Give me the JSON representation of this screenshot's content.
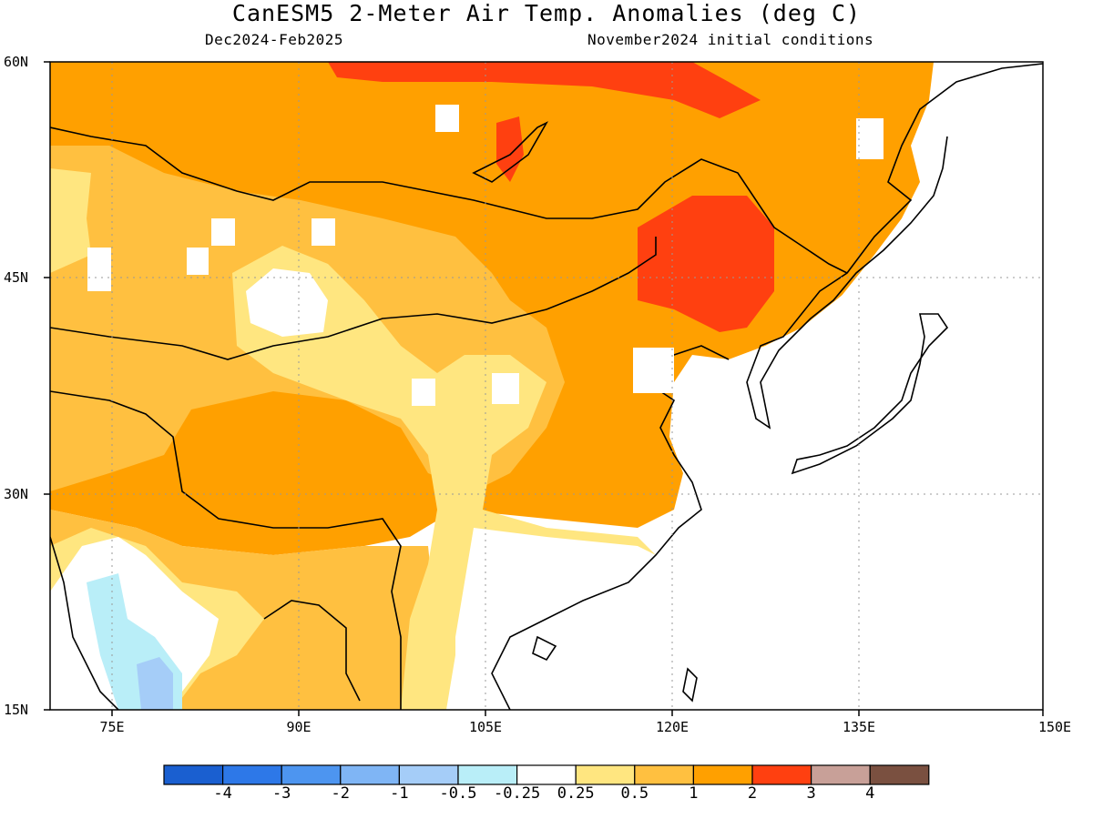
{
  "header": {
    "title": "CanESM5 2-Meter Air Temp. Anomalies (deg C)",
    "period": "Dec2024-Feb2025",
    "initial_conditions": "November2024 initial conditions"
  },
  "map": {
    "lat_labels": [
      "60N",
      "45N",
      "30N",
      "15N"
    ],
    "lon_labels": [
      "75E",
      "90E",
      "105E",
      "120E",
      "135E",
      "150E"
    ]
  },
  "colorbar": {
    "colors": [
      "#1a5fd0",
      "#2d78e8",
      "#4d95f0",
      "#7fb5f5",
      "#a5cdf8",
      "#b9eef8",
      "#ffffff",
      "#ffe680",
      "#ffc040",
      "#ffa000",
      "#ff4010",
      "#c8a098",
      "#7a5040"
    ],
    "labels": [
      "-4",
      "-3",
      "-2",
      "-1",
      "-0.5",
      "-0.25",
      "0.25",
      "0.5",
      "1",
      "2",
      "3",
      "4"
    ]
  }
}
